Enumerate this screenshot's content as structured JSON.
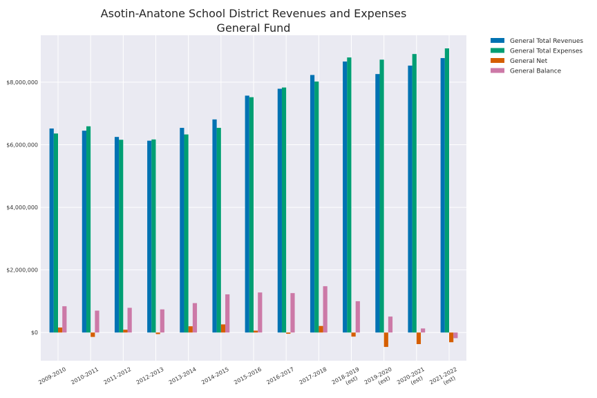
{
  "chart_data": {
    "type": "bar",
    "title": [
      "Asotin-Anatone School District Revenues and Expenses",
      "General Fund"
    ],
    "xlabel": "",
    "ylabel": "",
    "ylim": [
      -900000,
      9500000
    ],
    "grid": true,
    "legend_position": "outside-top-right",
    "categories": [
      [
        "2009-2010"
      ],
      [
        "2010-2011"
      ],
      [
        "2011-2012"
      ],
      [
        "2012-2013"
      ],
      [
        "2013-2014"
      ],
      [
        "2014-2015"
      ],
      [
        "2015-2016"
      ],
      [
        "2016-2017"
      ],
      [
        "2017-2018"
      ],
      [
        "2018-2019",
        "(est)"
      ],
      [
        "2019-2020",
        "(est)"
      ],
      [
        "2020-2021",
        "(est)"
      ],
      [
        "2021-2022",
        "(est)"
      ]
    ],
    "yticks": [
      {
        "value": 0,
        "label": "$0"
      },
      {
        "value": 2000000,
        "label": "$2,000,000"
      },
      {
        "value": 4000000,
        "label": "$4,000,000"
      },
      {
        "value": 6000000,
        "label": "$6,000,000"
      },
      {
        "value": 8000000,
        "label": "$8,000,000"
      }
    ],
    "series": [
      {
        "name": "General Total Revenues",
        "color": "#0072B2",
        "values": [
          6520000,
          6450000,
          6250000,
          6130000,
          6540000,
          6810000,
          7570000,
          7790000,
          8230000,
          8660000,
          8260000,
          8530000,
          8770000
        ]
      },
      {
        "name": "General Total Expenses",
        "color": "#009E73",
        "values": [
          6360000,
          6590000,
          6160000,
          6170000,
          6330000,
          6540000,
          7520000,
          7830000,
          8020000,
          8790000,
          8720000,
          8900000,
          9080000
        ]
      },
      {
        "name": "General Net",
        "color": "#D55E00",
        "values": [
          160000,
          -140000,
          90000,
          -50000,
          200000,
          260000,
          60000,
          -40000,
          210000,
          -130000,
          -460000,
          -370000,
          -310000
        ]
      },
      {
        "name": "General Balance",
        "color": "#CC79A7",
        "values": [
          840000,
          700000,
          790000,
          740000,
          940000,
          1220000,
          1280000,
          1260000,
          1480000,
          1000000,
          510000,
          130000,
          -180000
        ]
      }
    ]
  }
}
